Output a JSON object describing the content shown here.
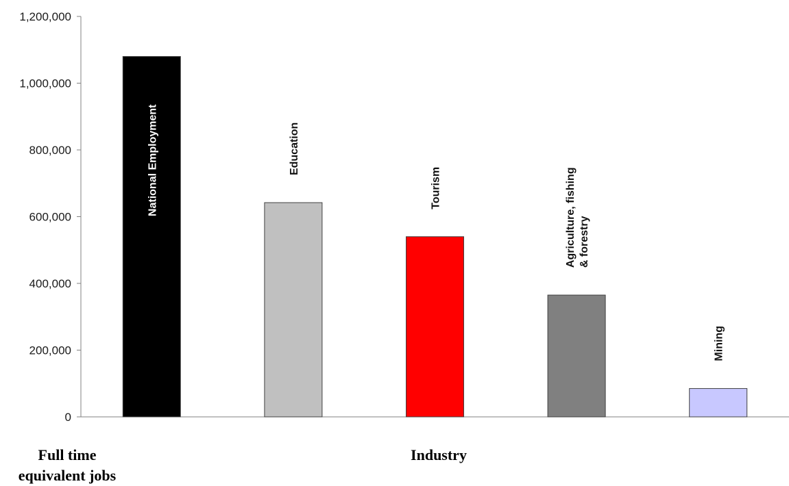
{
  "chart_data": {
    "type": "bar",
    "categories": [
      "National Employment",
      "Education",
      "Tourism",
      "Agriculture, fishing\n& forestry",
      "Mining"
    ],
    "values": [
      1080000,
      642000,
      540000,
      365000,
      85000
    ],
    "colors": [
      "#000000",
      "#c0c0c0",
      "#ff0000",
      "#808080",
      "#c8c8ff"
    ],
    "label_colors": [
      "#ffffff",
      "#111111",
      "#111111",
      "#111111",
      "#111111"
    ],
    "label_placement": [
      "inside",
      "above",
      "above",
      "above",
      "above"
    ],
    "xlabel": "Industry",
    "ylabel": "Full time\nequivalent jobs",
    "ylim": [
      0,
      1200000
    ],
    "yticks": [
      0,
      200000,
      400000,
      600000,
      800000,
      1000000,
      1200000
    ],
    "ytick_labels": [
      "0",
      "200,000",
      "400,000",
      "600,000",
      "800,000",
      "1,000,000",
      "1,200,000"
    ],
    "grid": false,
    "legend": "none"
  }
}
